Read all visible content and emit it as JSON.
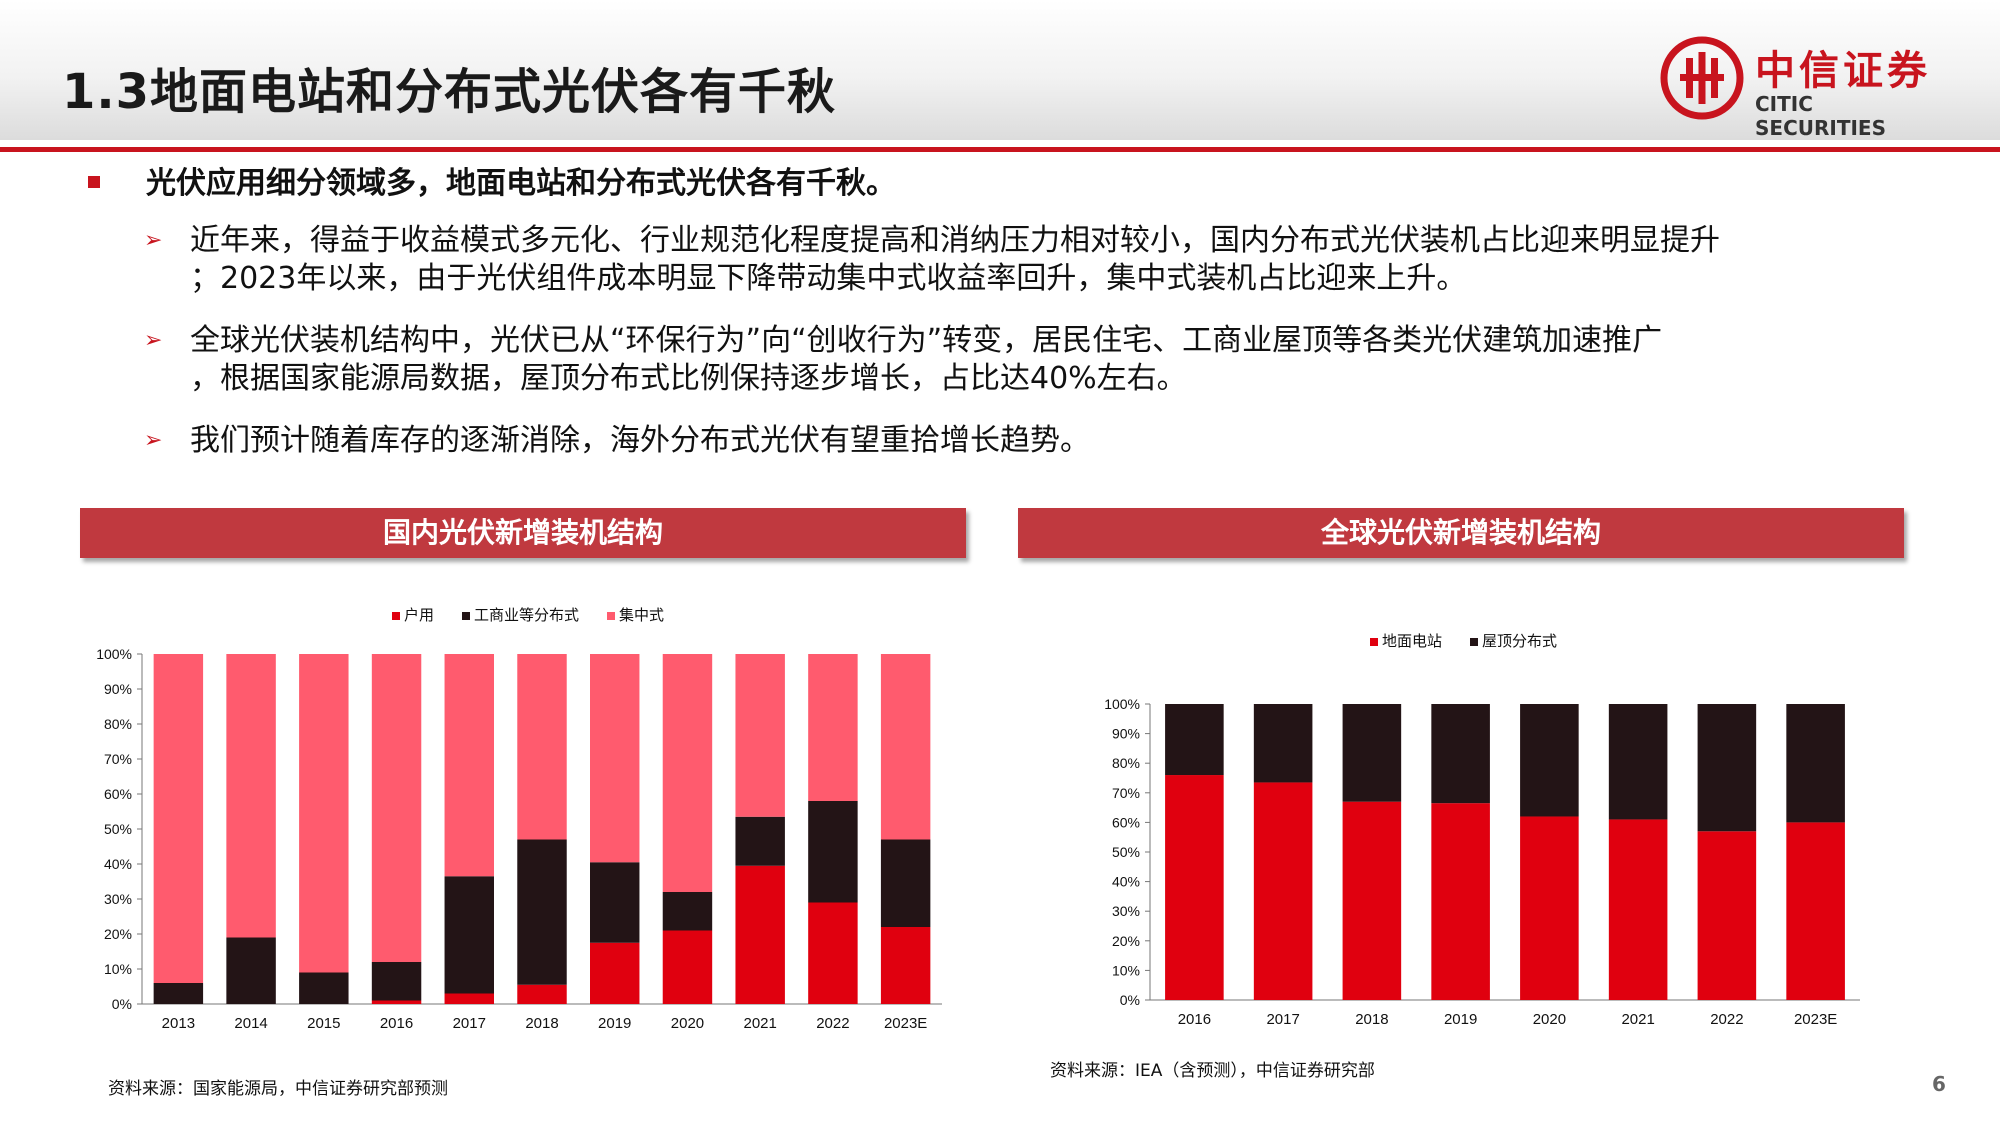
{
  "title": "1.3地面电站和分布式光伏各有千秋",
  "logo": {
    "cn": "中信证券",
    "en": "CITIC SECURITIES"
  },
  "main_bullet": "光伏应用细分领域多，地面电站和分布式光伏各有千秋。",
  "sub_bullets": [
    {
      "line1": "近年来，得益于收益模式多元化、行业规范化程度提高和消纳压力相对较小，国内分布式光伏装机占比迎来明显提升",
      "line2": "；2023年以来，由于光伏组件成本明显下降带动集中式收益率回升，集中式装机占比迎来上升。"
    },
    {
      "line1": "全球光伏装机结构中，光伏已从“环保行为”向“创收行为”转变，居民住宅、工商业屋顶等各类光伏建筑加速推广",
      "line2": "，根据国家能源局数据，屋顶分布式比例保持逐步增长，占比达40%左右。"
    },
    {
      "line1": "我们预计随着库存的逐渐消除，海外分布式光伏有望重拾增长趋势。",
      "line2": ""
    }
  ],
  "chart_titles": {
    "left": "国内光伏新增装机结构",
    "right": "全球光伏新增装机结构"
  },
  "colors": {
    "red": "#e0000f",
    "black": "#231416",
    "pink": "#ff5b6e",
    "accent": "#c8141e"
  },
  "chart_data": [
    {
      "type": "bar",
      "stacked": true,
      "categories": [
        "2013",
        "2014",
        "2015",
        "2016",
        "2017",
        "2018",
        "2019",
        "2020",
        "2021",
        "2022",
        "2023E"
      ],
      "series": [
        {
          "name": "户用",
          "values": [
            0,
            0,
            0,
            1,
            3,
            5.5,
            17.5,
            21,
            39.5,
            29,
            22
          ]
        },
        {
          "name": "工商业等分布式",
          "values": [
            6,
            19,
            9,
            11,
            33.5,
            41.5,
            23,
            11,
            14,
            29,
            25
          ]
        },
        {
          "name": "集中式",
          "values": [
            94,
            81,
            91,
            88,
            63.5,
            53,
            59.5,
            68,
            46.5,
            42,
            53
          ]
        }
      ],
      "yticks": [
        "0%",
        "10%",
        "20%",
        "30%",
        "40%",
        "50%",
        "60%",
        "70%",
        "80%",
        "90%",
        "100%"
      ],
      "ylim": [
        0,
        100
      ],
      "legend": "top",
      "source": "资料来源：国家能源局，中信证券研究部预测"
    },
    {
      "type": "bar",
      "stacked": true,
      "categories": [
        "2016",
        "2017",
        "2018",
        "2019",
        "2020",
        "2021",
        "2022",
        "2023E"
      ],
      "series": [
        {
          "name": "地面电站",
          "values": [
            76,
            73.5,
            67,
            66.5,
            62,
            61,
            57,
            60
          ]
        },
        {
          "name": "屋顶分布式",
          "values": [
            24,
            26.5,
            33,
            33.5,
            38,
            39,
            43,
            40
          ]
        }
      ],
      "yticks": [
        "0%",
        "10%",
        "20%",
        "30%",
        "40%",
        "50%",
        "60%",
        "70%",
        "80%",
        "90%",
        "100%"
      ],
      "ylim": [
        0,
        100
      ],
      "legend": "top",
      "source": "资料来源：IEA（含预测），中信证券研究部"
    }
  ],
  "page_number": "6"
}
